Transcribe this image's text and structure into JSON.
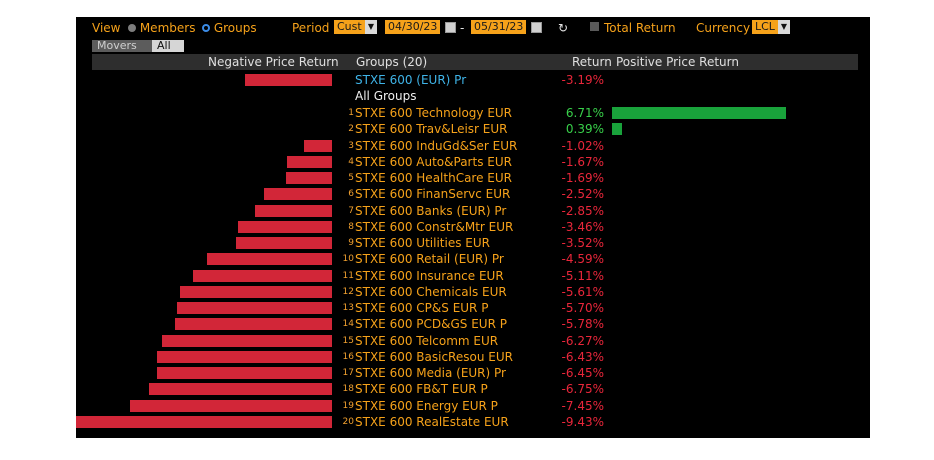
{
  "toolbar": {
    "view_label": "View",
    "members_label": "Members",
    "groups_label": "Groups",
    "period_label": "Period",
    "period_value": "Cust",
    "start_date": "04/30/23",
    "dash": "-",
    "end_date": "05/31/23",
    "refresh_icon": "refresh-icon",
    "total_return_label": "Total Return",
    "currency_label": "Currency",
    "currency_value": "LCL"
  },
  "tabs": {
    "movers": "Movers",
    "all": "All"
  },
  "columns": {
    "negative": "Negative Price Return",
    "groups": "Groups (20)",
    "return": "Return",
    "positive": "Positive Price Return"
  },
  "benchmark": {
    "name": "STXE 600 (EUR) Pr",
    "return": "-3.19%"
  },
  "section_label": "All Groups",
  "colors": {
    "positive": "#19a23b",
    "negative": "#d22638",
    "accent": "#f6a21a"
  },
  "groups": [
    {
      "rank": "1",
      "name": "STXE 600 Technology EUR",
      "return": "6.71%",
      "value": 6.71
    },
    {
      "rank": "2",
      "name": "STXE 600 Trav&Leisr EUR",
      "return": "0.39%",
      "value": 0.39
    },
    {
      "rank": "3",
      "name": "STXE 600 InduGd&Ser EUR",
      "return": "-1.02%",
      "value": -1.02
    },
    {
      "rank": "4",
      "name": "STXE 600 Auto&Parts EUR",
      "return": "-1.67%",
      "value": -1.67
    },
    {
      "rank": "5",
      "name": "STXE 600 HealthCare EUR",
      "return": "-1.69%",
      "value": -1.69
    },
    {
      "rank": "6",
      "name": "STXE 600 FinanServc EUR",
      "return": "-2.52%",
      "value": -2.52
    },
    {
      "rank": "7",
      "name": "STXE 600 Banks (EUR) Pr",
      "return": "-2.85%",
      "value": -2.85
    },
    {
      "rank": "8",
      "name": "STXE 600 Constr&Mtr EUR",
      "return": "-3.46%",
      "value": -3.46
    },
    {
      "rank": "9",
      "name": "STXE 600 Utilities EUR",
      "return": "-3.52%",
      "value": -3.52
    },
    {
      "rank": "10",
      "name": "STXE 600 Retail (EUR) Pr",
      "return": "-4.59%",
      "value": -4.59
    },
    {
      "rank": "11",
      "name": "STXE 600 Insurance EUR",
      "return": "-5.11%",
      "value": -5.11
    },
    {
      "rank": "12",
      "name": "STXE 600 Chemicals EUR",
      "return": "-5.61%",
      "value": -5.61
    },
    {
      "rank": "13",
      "name": "STXE 600 CP&S EUR P",
      "return": "-5.70%",
      "value": -5.7
    },
    {
      "rank": "14",
      "name": "STXE 600 PCD&GS EUR P",
      "return": "-5.78%",
      "value": -5.78
    },
    {
      "rank": "15",
      "name": "STXE 600 Telcomm EUR",
      "return": "-6.27%",
      "value": -6.27
    },
    {
      "rank": "16",
      "name": "STXE 600 BasicResou EUR",
      "return": "-6.43%",
      "value": -6.43
    },
    {
      "rank": "17",
      "name": "STXE 600 Media (EUR) Pr",
      "return": "-6.45%",
      "value": -6.45
    },
    {
      "rank": "18",
      "name": "STXE 600 FB&T EUR P",
      "return": "-6.75%",
      "value": -6.75
    },
    {
      "rank": "19",
      "name": "STXE 600 Energy EUR P",
      "return": "-7.45%",
      "value": -7.45
    },
    {
      "rank": "20",
      "name": "STXE 600 RealEstate EUR",
      "return": "-9.43%",
      "value": -9.43
    }
  ]
}
